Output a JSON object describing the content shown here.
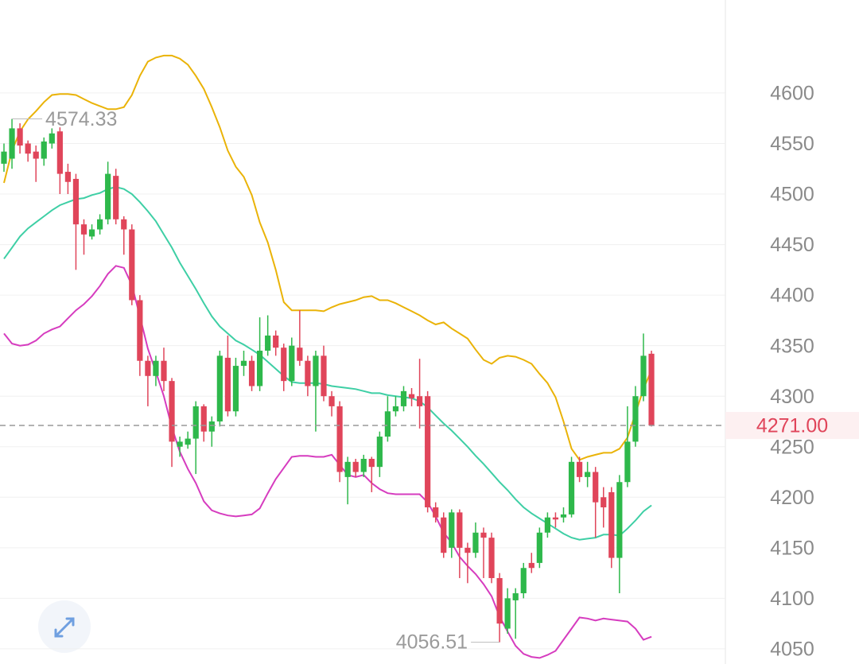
{
  "chart_data": {
    "type": "candlestick",
    "ylim": [
      4035,
      4692
    ],
    "yticks": [
      4050,
      4100,
      4150,
      4200,
      4250,
      4300,
      4350,
      4400,
      4450,
      4500,
      4550,
      4600
    ],
    "grid": true,
    "up_color": "#2eb84b",
    "down_color": "#e0455a",
    "open": [
      4530,
      4535,
      4565,
      4550,
      4542,
      4535,
      4550,
      4562,
      4522,
      4515,
      4470,
      4458,
      4465,
      4475,
      4518,
      4475,
      4465,
      4395,
      4335,
      4320,
      4335,
      4315,
      4250,
      4252,
      4258,
      4290,
      4265,
      4275,
      4338,
      4285,
      4330,
      4335,
      4310,
      4345,
      4360,
      4348,
      4315,
      4348,
      4335,
      4310,
      4340,
      4300,
      4290,
      4220,
      4235,
      4225,
      4238,
      4230,
      4260,
      4285,
      4290,
      4302,
      4300,
      4300,
      4190,
      4180,
      4150,
      4185,
      4150,
      4145,
      4165,
      4160,
      4120,
      4070,
      4098,
      4105,
      4135,
      4135,
      4165,
      4180,
      4180,
      4183,
      4235,
      4220,
      4225,
      4200,
      4205,
      4140,
      4215,
      4255,
      4300,
      4342
    ],
    "high": [
      4550,
      4574.33,
      4570,
      4553,
      4548,
      4556,
      4565,
      4566,
      4530,
      4520,
      4475,
      4470,
      4480,
      4532,
      4525,
      4478,
      4470,
      4400,
      4340,
      4340,
      4348,
      4318,
      4260,
      4265,
      4295,
      4292,
      4280,
      4345,
      4360,
      4338,
      4345,
      4340,
      4378,
      4380,
      4365,
      4352,
      4358,
      4385,
      4340,
      4345,
      4350,
      4305,
      4295,
      4240,
      4238,
      4242,
      4240,
      4265,
      4300,
      4300,
      4310,
      4308,
      4337,
      4305,
      4195,
      4185,
      4188,
      4188,
      4155,
      4175,
      4170,
      4165,
      4125,
      4110,
      4110,
      4135,
      4145,
      4170,
      4185,
      4185,
      4190,
      4240,
      4240,
      4235,
      4230,
      4210,
      4210,
      4222,
      4290,
      4310,
      4362,
      4345
    ],
    "low": [
      4522,
      4525,
      4540,
      4532,
      4512,
      4528,
      4545,
      4500,
      4500,
      4425,
      4440,
      4455,
      4460,
      4470,
      4470,
      4440,
      4390,
      4320,
      4290,
      4310,
      4305,
      4230,
      4240,
      4248,
      4223,
      4255,
      4250,
      4270,
      4280,
      4280,
      4320,
      4305,
      4305,
      4340,
      4340,
      4305,
      4310,
      4330,
      4300,
      4265,
      4295,
      4280,
      4215,
      4193,
      4220,
      4220,
      4205,
      4220,
      4255,
      4280,
      4285,
      4290,
      4268,
      4185,
      4175,
      4140,
      4140,
      4120,
      4115,
      4140,
      4120,
      4115,
      4056.51,
      4065,
      4060,
      4100,
      4125,
      4130,
      4160,
      4170,
      4175,
      4180,
      4215,
      4210,
      4160,
      4170,
      4130,
      4105,
      4210,
      4250,
      4295,
      4270
    ],
    "close": [
      4542,
      4565,
      4548,
      4540,
      4535,
      4552,
      4560,
      4520,
      4512,
      4470,
      4460,
      4465,
      4475,
      4520,
      4475,
      4465,
      4395,
      4335,
      4320,
      4335,
      4315,
      4255,
      4255,
      4258,
      4290,
      4265,
      4275,
      4340,
      4285,
      4330,
      4335,
      4310,
      4345,
      4360,
      4348,
      4315,
      4350,
      4335,
      4310,
      4340,
      4300,
      4290,
      4225,
      4235,
      4225,
      4238,
      4230,
      4260,
      4285,
      4290,
      4305,
      4298,
      4290,
      4190,
      4180,
      4145,
      4185,
      4150,
      4145,
      4165,
      4160,
      4120,
      4075,
      4100,
      4105,
      4130,
      4130,
      4165,
      4180,
      4178,
      4183,
      4235,
      4220,
      4225,
      4195,
      4190,
      4140,
      4215,
      4255,
      4300,
      4340,
      4271
    ],
    "series": [
      {
        "color": "#eab308",
        "values": [
          4511,
          4543,
          4562,
          4574,
          4582,
          4591,
          4598,
          4599,
          4599,
          4598,
          4594,
          4590,
          4587,
          4584,
          4584,
          4586,
          4598,
          4617,
          4631,
          4635,
          4637,
          4637,
          4634,
          4628,
          4617,
          4604,
          4586,
          4566,
          4543,
          4527,
          4517,
          4499,
          4472,
          4452,
          4425,
          4393,
          4385,
          4385,
          4385,
          4385,
          4384,
          4388,
          4391,
          4393,
          4395,
          4398,
          4399,
          4395,
          4395,
          4392,
          4388,
          4384,
          4380,
          4375,
          4371,
          4373,
          4367,
          4362,
          4357,
          4346,
          4336,
          4332,
          4338,
          4340,
          4339,
          4336,
          4332,
          4322,
          4313,
          4299,
          4275,
          4248,
          4237,
          4240,
          4242,
          4244,
          4244,
          4248,
          4259,
          4283,
          4307,
          4326
        ]
      },
      {
        "color": "#3ecfa5",
        "values": [
          4436,
          4447,
          4458,
          4466,
          4472,
          4478,
          4484,
          4489,
          4492,
          4495,
          4496,
          4499,
          4501,
          4505,
          4507,
          4505,
          4500,
          4492,
          4483,
          4473,
          4460,
          4447,
          4432,
          4419,
          4406,
          4392,
          4379,
          4369,
          4362,
          4355,
          4351,
          4346,
          4341,
          4334,
          4327,
          4320,
          4314,
          4313,
          4313,
          4313,
          4312,
          4310,
          4309,
          4308,
          4307,
          4305,
          4303,
          4303,
          4301,
          4300,
          4299,
          4298,
          4295,
          4289,
          4281,
          4273,
          4266,
          4258,
          4250,
          4241,
          4233,
          4224,
          4215,
          4207,
          4198,
          4190,
          4184,
          4179,
          4174,
          4169,
          4164,
          4160,
          4158,
          4159,
          4160,
          4163,
          4163,
          4162,
          4169,
          4177,
          4186,
          4192
        ]
      },
      {
        "color": "#d63cbf",
        "values": [
          4362,
          4352,
          4350,
          4351,
          4355,
          4362,
          4366,
          4369,
          4377,
          4385,
          4391,
          4399,
          4409,
          4421,
          4429,
          4427,
          4410,
          4379,
          4347,
          4324,
          4300,
          4269,
          4245,
          4228,
          4214,
          4196,
          4187,
          4184,
          4182,
          4181,
          4182,
          4183,
          4189,
          4204,
          4218,
          4229,
          4240,
          4241,
          4241,
          4240,
          4240,
          4242,
          4232,
          4222,
          4220,
          4222,
          4214,
          4208,
          4204,
          4203,
          4203,
          4203,
          4203,
          4195,
          4181,
          4165,
          4155,
          4141,
          4132,
          4124,
          4114,
          4102,
          4082,
          4067,
          4053,
          4045,
          4042,
          4041,
          4044,
          4048,
          4059,
          4070,
          4081,
          4080,
          4078,
          4080,
          4079,
          4078,
          4077,
          4070,
          4059,
          4062
        ]
      }
    ],
    "last_price": {
      "value": 4271,
      "label": "4271.00"
    }
  }
}
